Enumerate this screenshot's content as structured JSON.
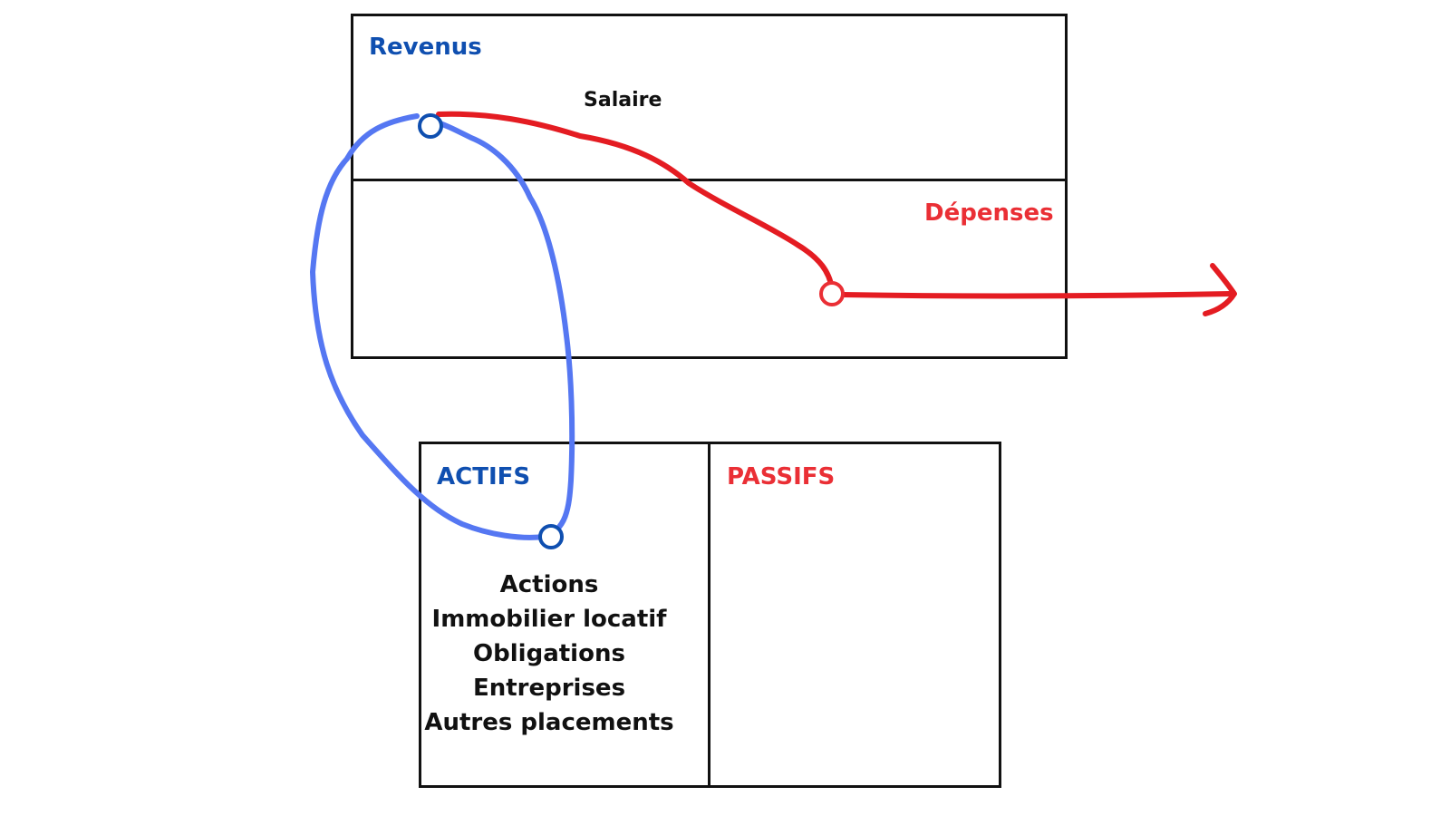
{
  "income_statement": {
    "revenue_heading": "Revenus",
    "revenue_item": "Salaire",
    "expenses_heading": "Dépenses"
  },
  "balance_sheet": {
    "assets_heading": "ACTIFS",
    "liabilities_heading": "PASSIFS",
    "assets_items": [
      "Actions",
      "Immobilier locatif",
      "Obligations",
      "Entreprises",
      "Autres placements"
    ]
  },
  "colors": {
    "positive_blue": "#0f4fb0",
    "negative_red": "#ea2f35",
    "loop_stroke": "#5577f2",
    "outflow_stroke": "#e41c22",
    "box_border": "#111111"
  }
}
